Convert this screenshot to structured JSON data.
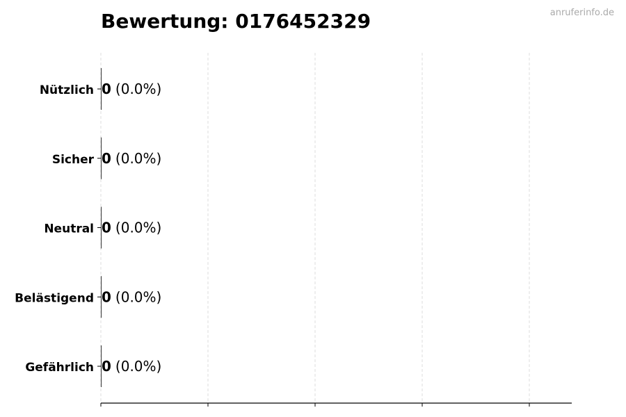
{
  "watermark": "anruferinfo.de",
  "chart_data": {
    "type": "bar",
    "orientation": "horizontal",
    "title": "Bewertung: 0176452329",
    "categories": [
      "Nützlich",
      "Sicher",
      "Neutral",
      "Belästigend",
      "Gefährlich"
    ],
    "values": [
      0,
      0,
      0,
      0,
      0
    ],
    "percent_labels": [
      "(0.0%)",
      "(0.0%)",
      "(0.0%)",
      "(0.0%)",
      "(0.0%)"
    ],
    "value_labels": [
      "0",
      "0",
      "0",
      "0",
      "0"
    ],
    "xlabel": "",
    "ylabel": "",
    "x_tick_labels": [],
    "grid": "vertical dashed",
    "colors": {
      "grid": "#dddddd",
      "axis": "#000000",
      "watermark": "#aaaaaa"
    }
  }
}
